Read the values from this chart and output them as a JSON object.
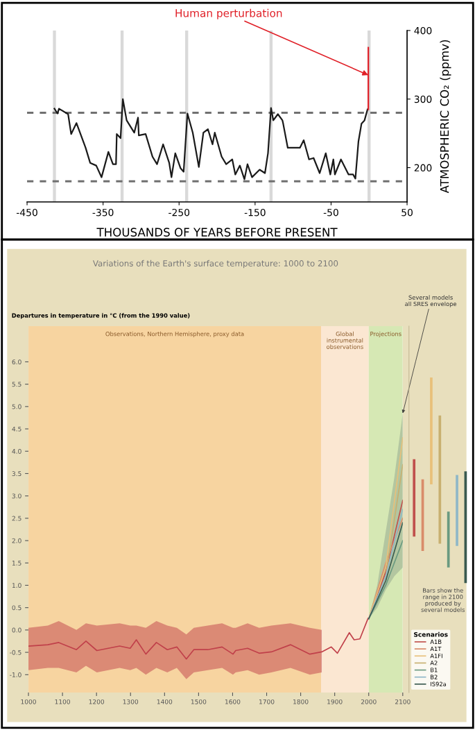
{
  "chart_data": [
    {
      "type": "line",
      "xlabel": "THOUSANDS OF YEARS BEFORE PRESENT",
      "ylabel": "ATMOSPHERIC CO₂ (ppmv)",
      "xlim": [
        -450,
        50
      ],
      "xticks": [
        -450,
        -350,
        -250,
        -150,
        -50,
        50
      ],
      "ylim": [
        150,
        400
      ],
      "yticks": [
        200,
        300,
        400
      ],
      "grid": false,
      "legend": false,
      "series": [
        {
          "color": "#1a1a1a",
          "x": [
            -414,
            -410,
            -408,
            -396,
            -392,
            -385,
            -379,
            -373,
            -367,
            -359,
            -352,
            -343,
            -337,
            -333,
            -332,
            -327,
            -324,
            -319,
            -309,
            -304,
            -303,
            -294,
            -285,
            -279,
            -271,
            -263,
            -260,
            -255,
            -248,
            -244,
            -239,
            -232,
            -224,
            -218,
            -212,
            -206,
            -203,
            -194,
            -188,
            -180,
            -176,
            -170,
            -164,
            -160,
            -154,
            -144,
            -137,
            -133,
            -129,
            -126,
            -120,
            -114,
            -113,
            -107,
            -101,
            -91,
            -86,
            -79,
            -73,
            -65,
            -57,
            -51,
            -47,
            -45,
            -37,
            -27,
            -21,
            -18,
            -14,
            -10,
            -6,
            -2
          ],
          "values": [
            286,
            279,
            286,
            278,
            249,
            265,
            247,
            229,
            207,
            203,
            186,
            223,
            205,
            205,
            249,
            243,
            300,
            269,
            251,
            273,
            247,
            249,
            216,
            205,
            234,
            207,
            186,
            221,
            199,
            194,
            279,
            251,
            201,
            251,
            256,
            234,
            251,
            216,
            205,
            212,
            190,
            203,
            183,
            205,
            186,
            197,
            192,
            221,
            287,
            269,
            278,
            269,
            264,
            229,
            229,
            229,
            240,
            212,
            214,
            192,
            221,
            190,
            212,
            190,
            212,
            190,
            190,
            184,
            238,
            264,
            269,
            285
          ]
        },
        {
          "color": "#e02028",
          "x": [
            -1,
            -1
          ],
          "values": [
            285,
            375
          ]
        }
      ],
      "ref_lines": [
        {
          "axis": "y",
          "value": 280,
          "color": "#707070",
          "line_style": "dashed"
        },
        {
          "axis": "y",
          "value": 180,
          "color": "#707070",
          "line_style": "dashed"
        }
      ],
      "bands": [
        {
          "axis": "x",
          "from": -416,
          "to": -412,
          "color": "#d9d9d9"
        },
        {
          "axis": "x",
          "from": -327,
          "to": -323,
          "color": "#d9d9d9"
        },
        {
          "axis": "x",
          "from": -242,
          "to": -238,
          "color": "#d9d9d9"
        },
        {
          "axis": "x",
          "from": -131,
          "to": -127,
          "color": "#d9d9d9"
        },
        {
          "axis": "x",
          "from": -2,
          "to": 2,
          "color": "#d9d9d9"
        }
      ],
      "annotations": [
        {
          "text": "Human perturbation",
          "x": -1,
          "y": 335
        }
      ]
    },
    {
      "type": "line",
      "title": "Variations of the Earth's surface temperature: 1000 to 2100",
      "ylabel": "Departures in temperature in °C (from the 1990 value)",
      "legend_title": "Scenarios",
      "legend": "bottom right",
      "grid": false,
      "xlim": [
        1000,
        2100
      ],
      "xticks": [
        1000,
        1100,
        1200,
        1300,
        1400,
        1500,
        1600,
        1700,
        1800,
        1900,
        2000,
        2100
      ],
      "ylim": [
        -1.4,
        6.8
      ],
      "yticks": [
        {
          "value": -1,
          "label": "-1.0"
        },
        -0.5,
        {
          "value": 0,
          "label": "0.0"
        },
        0.5,
        {
          "value": 1,
          "label": "1.0"
        },
        1.5,
        {
          "value": 2,
          "label": "2.0"
        },
        2.5,
        {
          "value": 3,
          "label": "3.0"
        },
        3.5,
        {
          "value": 4,
          "label": "4.0"
        },
        4.5,
        {
          "value": 5,
          "label": "5.0"
        },
        5.5,
        {
          "value": 6,
          "label": "6.0"
        }
      ],
      "bands": [
        {
          "axis": "x",
          "from": 1000,
          "to": 1860,
          "color": "#f7d4a0",
          "label": "Observations, Northern Hemisphere, proxy data"
        },
        {
          "axis": "x",
          "from": 1860,
          "to": 2000,
          "color": "#fbe7d2",
          "label": "Global\ninstrumental\nobservations"
        },
        {
          "axis": "x",
          "from": 2000,
          "to": 2100,
          "color": "#d6e8b4",
          "label": "Projections"
        }
      ],
      "series": [
        {
          "color": "#c0404a",
          "x": [
            1000,
            1057,
            1089,
            1141,
            1169,
            1201,
            1268,
            1299,
            1317,
            1345,
            1376,
            1408,
            1436,
            1464,
            1486,
            1527,
            1569,
            1601,
            1609,
            1644,
            1678,
            1714,
            1770,
            1827,
            1862,
            1890,
            1908,
            1943,
            1957,
            1974,
            1998
          ],
          "values": [
            -0.36,
            -0.33,
            -0.28,
            -0.44,
            -0.25,
            -0.46,
            -0.36,
            -0.41,
            -0.22,
            -0.54,
            -0.28,
            -0.44,
            -0.38,
            -0.65,
            -0.44,
            -0.44,
            -0.38,
            -0.54,
            -0.46,
            -0.41,
            -0.52,
            -0.49,
            -0.33,
            -0.54,
            -0.49,
            -0.38,
            -0.52,
            -0.06,
            -0.22,
            -0.2,
            0.26
          ],
          "lower": [
            -0.9,
            -0.85,
            -0.85,
            -0.95,
            -0.8,
            -0.95,
            -0.85,
            -0.9,
            -0.85,
            -1.0,
            -0.85,
            -0.95,
            -0.85,
            -1.1,
            -0.95,
            -0.9,
            -0.85,
            -1.0,
            -0.95,
            -0.9,
            -1.0,
            -0.95,
            -0.85,
            -1.0,
            -0.95,
            null,
            null,
            null,
            null,
            null,
            null
          ],
          "upper": [
            0.05,
            0.1,
            0.2,
            0.0,
            0.15,
            0.1,
            0.15,
            0.1,
            0.1,
            0.05,
            0.2,
            0.1,
            0.05,
            -0.1,
            0.05,
            0.1,
            0.15,
            0.05,
            0.05,
            0.15,
            0.05,
            0.1,
            0.15,
            0.05,
            0.0,
            null,
            null,
            null,
            null,
            null,
            null
          ]
        },
        {
          "color": "#8fa48c",
          "x": [
            2000,
            2025,
            2050,
            2075,
            2100
          ],
          "values": [
            null,
            null,
            null,
            null,
            null
          ],
          "lower": [
            0.25,
            0.5,
            0.9,
            1.2,
            1.4
          ],
          "upper": [
            0.25,
            1.0,
            2.2,
            3.4,
            4.85
          ]
        },
        {
          "name": "A1B",
          "color": "#c0504d",
          "x": [
            2000,
            2050,
            2100
          ],
          "values": [
            0.25,
            1.3,
            2.9
          ]
        },
        {
          "name": "A1T",
          "color": "#d98c6a",
          "x": [
            2000,
            2050,
            2100
          ],
          "values": [
            0.25,
            1.5,
            2.5
          ]
        },
        {
          "name": "A1FI",
          "color": "#e8c07a",
          "x": [
            2000,
            2050,
            2100
          ],
          "values": [
            0.25,
            1.4,
            4.3
          ]
        },
        {
          "name": "A2",
          "color": "#c8b070",
          "x": [
            2000,
            2050,
            2100
          ],
          "values": [
            0.25,
            1.2,
            3.7
          ]
        },
        {
          "name": "B1",
          "color": "#6a9a80",
          "x": [
            2000,
            2050,
            2100
          ],
          "values": [
            0.25,
            1.0,
            2.0
          ]
        },
        {
          "name": "B2",
          "color": "#8fb8c8",
          "x": [
            2000,
            2050,
            2100
          ],
          "values": [
            0.25,
            1.2,
            2.7
          ]
        },
        {
          "name": "IS92a",
          "color": "#3a5a50",
          "x": [
            2000,
            2050,
            2100
          ],
          "values": [
            0.25,
            1.1,
            2.4
          ]
        }
      ],
      "annotations": [
        {
          "text": "Several models\nall SRES envelope",
          "x": 2100,
          "y": 4.85
        }
      ]
    },
    {
      "type": "bar",
      "categories": [
        null,
        null,
        null,
        null,
        null,
        null,
        null
      ],
      "values": [
        1.73,
        1.6,
        2.39,
        2.87,
        1.25,
        1.59,
        2.5
      ],
      "base": [
        2.09,
        1.77,
        3.26,
        1.93,
        1.4,
        1.88,
        1.05
      ],
      "colors": [
        "#c0504d",
        "#d98c6a",
        "#e8c07a",
        "#c8b070",
        "#6a9a80",
        "#8fb8c8",
        "#3a5a50"
      ],
      "ylim": [
        -1.4,
        6.8
      ],
      "annotations": [
        "Bars show the\nrange in 2100\nproduced by\nseveral models"
      ]
    }
  ]
}
